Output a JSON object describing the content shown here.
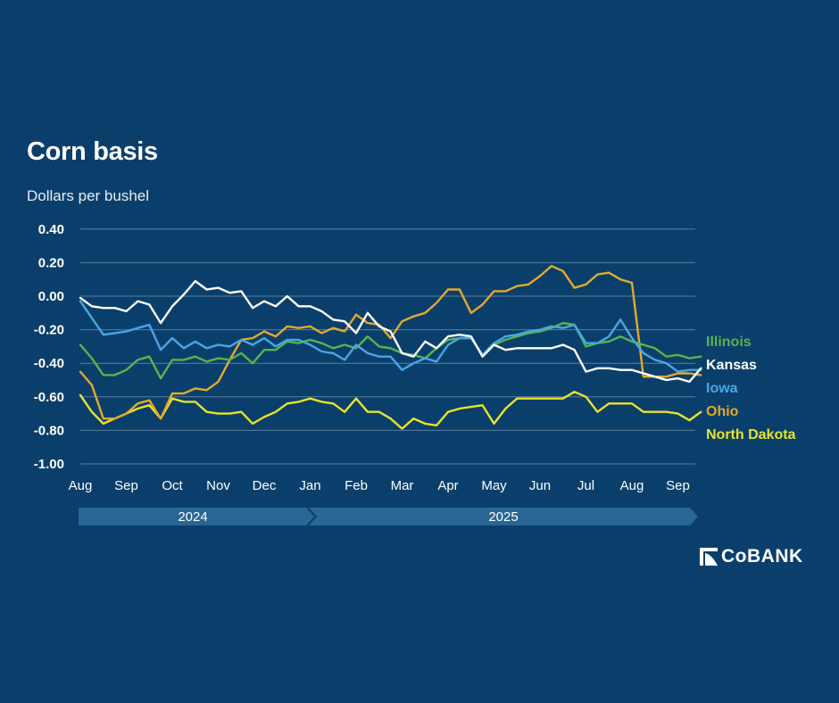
{
  "brand": {
    "logo_text": "CoBANK"
  },
  "colors": {
    "background": "#0b3f6b",
    "gridline": "#5a7e9e",
    "year_band": "#2a6693",
    "Illinois": "#55b54e",
    "Kansas": "#ffffff",
    "Iowa": "#49a6e4",
    "Ohio": "#e3a92d",
    "North Dakota": "#e8e32a"
  },
  "chart_data": {
    "type": "line",
    "title": "Corn basis",
    "subtitle": "Dollars per bushel",
    "ylim": [
      -1.0,
      0.4
    ],
    "y_ticks": [
      "0.40",
      "0.20",
      "0.00",
      "-0.20",
      "-0.40",
      "-0.60",
      "-0.80",
      "-1.00"
    ],
    "x_ticks": [
      "Aug",
      "Sep",
      "Oct",
      "Nov",
      "Dec",
      "Jan",
      "Feb",
      "Mar",
      "Apr",
      "May",
      "Jun",
      "Jul",
      "Aug",
      "Sep"
    ],
    "years": [
      "2024",
      "2025"
    ],
    "grid": true,
    "legend_position": "right",
    "series": [
      {
        "name": "Illinois",
        "x": [
          0,
          0.25,
          0.5,
          0.75,
          1.0,
          1.25,
          1.5,
          1.75,
          2.0,
          2.25,
          2.5,
          2.75,
          3.0,
          3.25,
          3.5,
          3.75,
          4.0,
          4.25,
          4.5,
          4.75,
          5.0,
          5.25,
          5.5,
          5.75,
          6.0,
          6.25,
          6.5,
          6.75,
          7.0,
          7.25,
          7.5,
          7.75,
          8.0,
          8.25,
          8.5,
          8.75,
          9.0,
          9.25,
          9.5,
          9.75,
          10.0,
          10.25,
          10.5,
          10.75,
          11.0,
          11.25,
          11.5,
          11.75,
          12.0,
          12.25,
          12.5,
          12.75,
          13.0,
          13.25,
          13.5
        ],
        "y": [
          -0.29,
          -0.37,
          -0.47,
          -0.47,
          -0.44,
          -0.38,
          -0.36,
          -0.49,
          -0.38,
          -0.38,
          -0.36,
          -0.39,
          -0.37,
          -0.38,
          -0.34,
          -0.4,
          -0.32,
          -0.32,
          -0.27,
          -0.28,
          -0.26,
          -0.28,
          -0.31,
          -0.29,
          -0.31,
          -0.24,
          -0.3,
          -0.31,
          -0.34,
          -0.35,
          -0.37,
          -0.31,
          -0.26,
          -0.25,
          -0.25,
          -0.35,
          -0.29,
          -0.26,
          -0.24,
          -0.22,
          -0.21,
          -0.19,
          -0.16,
          -0.17,
          -0.3,
          -0.28,
          -0.27,
          -0.24,
          -0.27,
          -0.29,
          -0.31,
          -0.36,
          -0.35,
          -0.37,
          -0.36
        ]
      },
      {
        "name": "Kansas",
        "x": [
          0,
          0.25,
          0.5,
          0.75,
          1.0,
          1.25,
          1.5,
          1.75,
          2.0,
          2.25,
          2.5,
          2.75,
          3.0,
          3.25,
          3.5,
          3.75,
          4.0,
          4.25,
          4.5,
          4.75,
          5.0,
          5.25,
          5.5,
          5.75,
          6.0,
          6.25,
          6.5,
          6.75,
          7.0,
          7.25,
          7.5,
          7.75,
          8.0,
          8.25,
          8.5,
          8.75,
          9.0,
          9.25,
          9.5,
          9.75,
          10.0,
          10.25,
          10.5,
          10.75,
          11.0,
          11.25,
          11.5,
          11.75,
          12.0,
          12.25,
          12.5,
          12.75,
          13.0,
          13.25,
          13.5
        ],
        "y": [
          -0.01,
          -0.06,
          -0.07,
          -0.07,
          -0.09,
          -0.03,
          -0.05,
          -0.16,
          -0.06,
          0.01,
          0.09,
          0.04,
          0.05,
          0.02,
          0.03,
          -0.07,
          -0.03,
          -0.06,
          0.0,
          -0.06,
          -0.06,
          -0.09,
          -0.14,
          -0.15,
          -0.22,
          -0.1,
          -0.18,
          -0.21,
          -0.34,
          -0.36,
          -0.27,
          -0.31,
          -0.24,
          -0.23,
          -0.24,
          -0.36,
          -0.29,
          -0.32,
          -0.31,
          -0.31,
          -0.31,
          -0.31,
          -0.29,
          -0.32,
          -0.45,
          -0.43,
          -0.43,
          -0.44,
          -0.44,
          -0.46,
          -0.48,
          -0.5,
          -0.49,
          -0.51,
          -0.43
        ]
      },
      {
        "name": "Iowa",
        "x": [
          0,
          0.25,
          0.5,
          0.75,
          1.0,
          1.25,
          1.5,
          1.75,
          2.0,
          2.25,
          2.5,
          2.75,
          3.0,
          3.25,
          3.5,
          3.75,
          4.0,
          4.25,
          4.5,
          4.75,
          5.0,
          5.25,
          5.5,
          5.75,
          6.0,
          6.25,
          6.5,
          6.75,
          7.0,
          7.25,
          7.5,
          7.75,
          8.0,
          8.25,
          8.5,
          8.75,
          9.0,
          9.25,
          9.5,
          9.75,
          10.0,
          10.25,
          10.5,
          10.75,
          11.0,
          11.25,
          11.5,
          11.75,
          12.0,
          12.25,
          12.5,
          12.75,
          13.0,
          13.25,
          13.5
        ],
        "y": [
          -0.03,
          -0.13,
          -0.23,
          -0.22,
          -0.21,
          -0.19,
          -0.17,
          -0.32,
          -0.25,
          -0.31,
          -0.27,
          -0.31,
          -0.29,
          -0.3,
          -0.26,
          -0.29,
          -0.25,
          -0.3,
          -0.26,
          -0.26,
          -0.29,
          -0.33,
          -0.34,
          -0.38,
          -0.29,
          -0.34,
          -0.36,
          -0.36,
          -0.44,
          -0.4,
          -0.37,
          -0.39,
          -0.29,
          -0.25,
          -0.25,
          -0.35,
          -0.28,
          -0.24,
          -0.23,
          -0.21,
          -0.2,
          -0.18,
          -0.19,
          -0.17,
          -0.28,
          -0.28,
          -0.24,
          -0.14,
          -0.25,
          -0.34,
          -0.38,
          -0.4,
          -0.45,
          -0.44,
          -0.44
        ]
      },
      {
        "name": "Ohio",
        "x": [
          0,
          0.25,
          0.5,
          0.75,
          1.0,
          1.25,
          1.5,
          1.75,
          2.0,
          2.25,
          2.5,
          2.75,
          3.0,
          3.25,
          3.5,
          3.75,
          4.0,
          4.25,
          4.5,
          4.75,
          5.0,
          5.25,
          5.5,
          5.75,
          6.0,
          6.25,
          6.5,
          6.75,
          7.0,
          7.25,
          7.5,
          7.75,
          8.0,
          8.25,
          8.5,
          8.75,
          9.0,
          9.25,
          9.5,
          9.75,
          10.0,
          10.25,
          10.5,
          10.75,
          11.0,
          11.25,
          11.5,
          11.75,
          12.0,
          12.25,
          12.5,
          12.75,
          13.0,
          13.25,
          13.5
        ],
        "y": [
          -0.45,
          -0.53,
          -0.73,
          -0.73,
          -0.7,
          -0.64,
          -0.62,
          -0.73,
          -0.58,
          -0.58,
          -0.55,
          -0.56,
          -0.51,
          -0.38,
          -0.26,
          -0.25,
          -0.21,
          -0.24,
          -0.18,
          -0.19,
          -0.18,
          -0.22,
          -0.19,
          -0.21,
          -0.11,
          -0.16,
          -0.17,
          -0.25,
          -0.15,
          -0.12,
          -0.1,
          -0.04,
          0.04,
          0.04,
          -0.1,
          -0.05,
          0.03,
          0.03,
          0.06,
          0.07,
          0.12,
          0.18,
          0.15,
          0.05,
          0.07,
          0.13,
          0.14,
          0.1,
          0.08,
          -0.48,
          -0.48,
          -0.48,
          -0.46,
          -0.46,
          -0.47
        ]
      },
      {
        "name": "North Dakota",
        "x": [
          0,
          0.25,
          0.5,
          0.75,
          1.0,
          1.25,
          1.5,
          1.75,
          2.0,
          2.25,
          2.5,
          2.75,
          3.0,
          3.25,
          3.5,
          3.75,
          4.0,
          4.25,
          4.5,
          4.75,
          5.0,
          5.25,
          5.5,
          5.75,
          6.0,
          6.25,
          6.5,
          6.75,
          7.0,
          7.25,
          7.5,
          7.75,
          8.0,
          8.25,
          8.5,
          8.75,
          9.0,
          9.25,
          9.5,
          9.75,
          10.0,
          10.25,
          10.5,
          10.75,
          11.0,
          11.25,
          11.5,
          11.75,
          12.0,
          12.25,
          12.5,
          12.75,
          13.0,
          13.25,
          13.5
        ],
        "y": [
          -0.59,
          -0.69,
          -0.76,
          -0.73,
          -0.7,
          -0.67,
          -0.65,
          -0.73,
          -0.61,
          -0.63,
          -0.63,
          -0.69,
          -0.7,
          -0.7,
          -0.69,
          -0.76,
          -0.72,
          -0.69,
          -0.64,
          -0.63,
          -0.61,
          -0.63,
          -0.64,
          -0.69,
          -0.61,
          -0.69,
          -0.69,
          -0.73,
          -0.79,
          -0.73,
          -0.76,
          -0.77,
          -0.69,
          -0.67,
          -0.66,
          -0.65,
          -0.76,
          -0.67,
          -0.61,
          -0.61,
          -0.61,
          -0.61,
          -0.61,
          -0.57,
          -0.6,
          -0.69,
          -0.64,
          -0.64,
          -0.64,
          -0.69,
          -0.69,
          -0.69,
          -0.7,
          -0.74,
          -0.69
        ]
      }
    ]
  }
}
